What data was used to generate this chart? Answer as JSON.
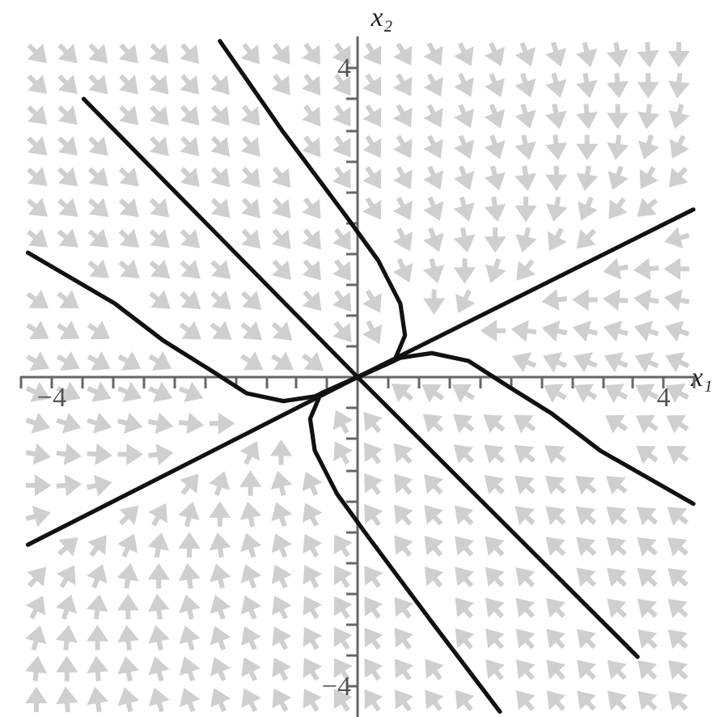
{
  "chart_data": {
    "type": "line",
    "xlabel": "x₁",
    "ylabel": "x₂",
    "marker": "none",
    "grid": false,
    "xlim": [
      -4.4,
      4.4
    ],
    "ylim": [
      -4.4,
      4.4
    ],
    "xticks": [
      {
        "value": -4.4,
        "label": null
      },
      -4,
      {
        "value": -3.6,
        "label": null
      },
      {
        "value": -3.2,
        "label": null
      },
      {
        "value": -2.8,
        "label": null
      },
      {
        "value": -2.4,
        "label": null
      },
      {
        "value": -2,
        "label": null
      },
      {
        "value": -1.6,
        "label": null
      },
      {
        "value": -1.2,
        "label": null
      },
      {
        "value": -0.8,
        "label": null
      },
      {
        "value": -0.4,
        "label": null
      },
      {
        "value": 0.4,
        "label": null
      },
      {
        "value": 0.8,
        "label": null
      },
      {
        "value": 1.2,
        "label": null
      },
      {
        "value": 1.6,
        "label": null
      },
      {
        "value": 2,
        "label": null
      },
      {
        "value": 2.4,
        "label": null
      },
      {
        "value": 2.8,
        "label": null
      },
      {
        "value": 3.2,
        "label": null
      },
      {
        "value": 3.6,
        "label": null
      },
      4,
      {
        "value": 4.4,
        "label": null
      }
    ],
    "yticks": [
      -4,
      {
        "value": -3.6,
        "label": null
      },
      {
        "value": -3.2,
        "label": null
      },
      {
        "value": -2.8,
        "label": null
      },
      {
        "value": -2.4,
        "label": null
      },
      {
        "value": -2,
        "label": null
      },
      {
        "value": -1.6,
        "label": null
      },
      {
        "value": -1.2,
        "label": null
      },
      {
        "value": -0.8,
        "label": null
      },
      {
        "value": -0.4,
        "label": null
      },
      {
        "value": 0.4,
        "label": null
      },
      {
        "value": 0.8,
        "label": null
      },
      {
        "value": 1.2,
        "label": null
      },
      {
        "value": 1.6,
        "label": null
      },
      {
        "value": 2,
        "label": null
      },
      {
        "value": 2.4,
        "label": null
      },
      {
        "value": 2.8,
        "label": null
      },
      {
        "value": 3.2,
        "label": null
      },
      {
        "value": 3.6,
        "label": null
      },
      4
    ],
    "series": [
      {
        "color": "#111111",
        "x": [
          -4.31,
          0,
          4.39
        ],
        "values": [
          -2.17,
          0,
          2.17
        ]
      },
      {
        "color": "#111111",
        "x": [
          -3.58,
          0,
          3.66
        ],
        "values": [
          3.6,
          0,
          -3.62
        ]
      },
      {
        "color": "#111111",
        "x": [
          -1.8,
          -0.97,
          -0.14,
          0.27,
          0.56,
          0.62,
          0.48,
          0,
          -0.48,
          -0.62,
          -0.56,
          -0.27,
          0.14,
          0.97,
          1.86
        ],
        "values": [
          4.35,
          3.17,
          2.07,
          1.51,
          0.95,
          0.54,
          0.21,
          0,
          -0.21,
          -0.54,
          -0.95,
          -1.51,
          -2.07,
          -3.17,
          -4.33
        ]
      },
      {
        "color": "#111111",
        "x": [
          -4.31,
          -3.17,
          -2.55,
          -1.97,
          -1.45,
          -0.97,
          -0.56,
          0,
          0.56,
          0.97,
          1.45,
          1.97,
          2.55,
          3.17,
          4.39
        ],
        "values": [
          1.61,
          0.95,
          0.48,
          0.12,
          -0.21,
          -0.31,
          -0.25,
          0,
          0.25,
          0.31,
          0.21,
          -0.12,
          -0.48,
          -0.95,
          -1.64
        ]
      }
    ]
  }
}
